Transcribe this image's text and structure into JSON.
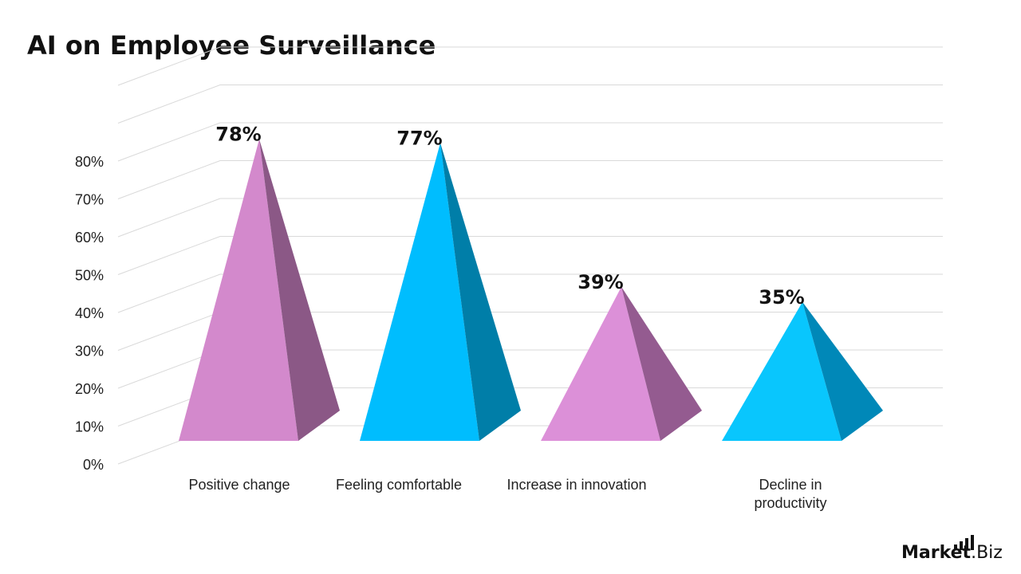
{
  "title": "AI on Employee Surveillance",
  "brand": {
    "name_bold": "Market",
    "name_rest": ".Biz"
  },
  "chart_data": {
    "type": "bar",
    "style": "3d-pyramid",
    "title": "AI on Employee Surveillance",
    "xlabel": "",
    "ylabel": "",
    "categories": [
      "Positive change",
      "Feeling comfortable",
      "Increase in innovation",
      "Decline in productivity"
    ],
    "category_lines": [
      [
        "Positive change"
      ],
      [
        "Feeling comfortable"
      ],
      [
        "Increase in innovation"
      ],
      [
        "Decline in",
        "productivity"
      ]
    ],
    "values": [
      78,
      77,
      39,
      35
    ],
    "data_labels": [
      "78%",
      "77%",
      "39%",
      "35%"
    ],
    "ylim": [
      0,
      100
    ],
    "y_ticks": [
      0,
      10,
      20,
      30,
      40,
      50,
      60,
      70,
      80
    ],
    "y_tick_labels": [
      "0%",
      "10%",
      "20%",
      "30%",
      "40%",
      "50%",
      "60%",
      "70%",
      "80%"
    ],
    "grid": true,
    "legend": "none",
    "colors": {
      "front": [
        "#d389cc",
        "#00bdfe",
        "#dc90d8",
        "#09c6fd"
      ],
      "side": [
        "#8b5886",
        "#007ea8",
        "#945b90",
        "#0088b8"
      ],
      "grid": "#d9d9d9",
      "text": "#111111"
    }
  }
}
